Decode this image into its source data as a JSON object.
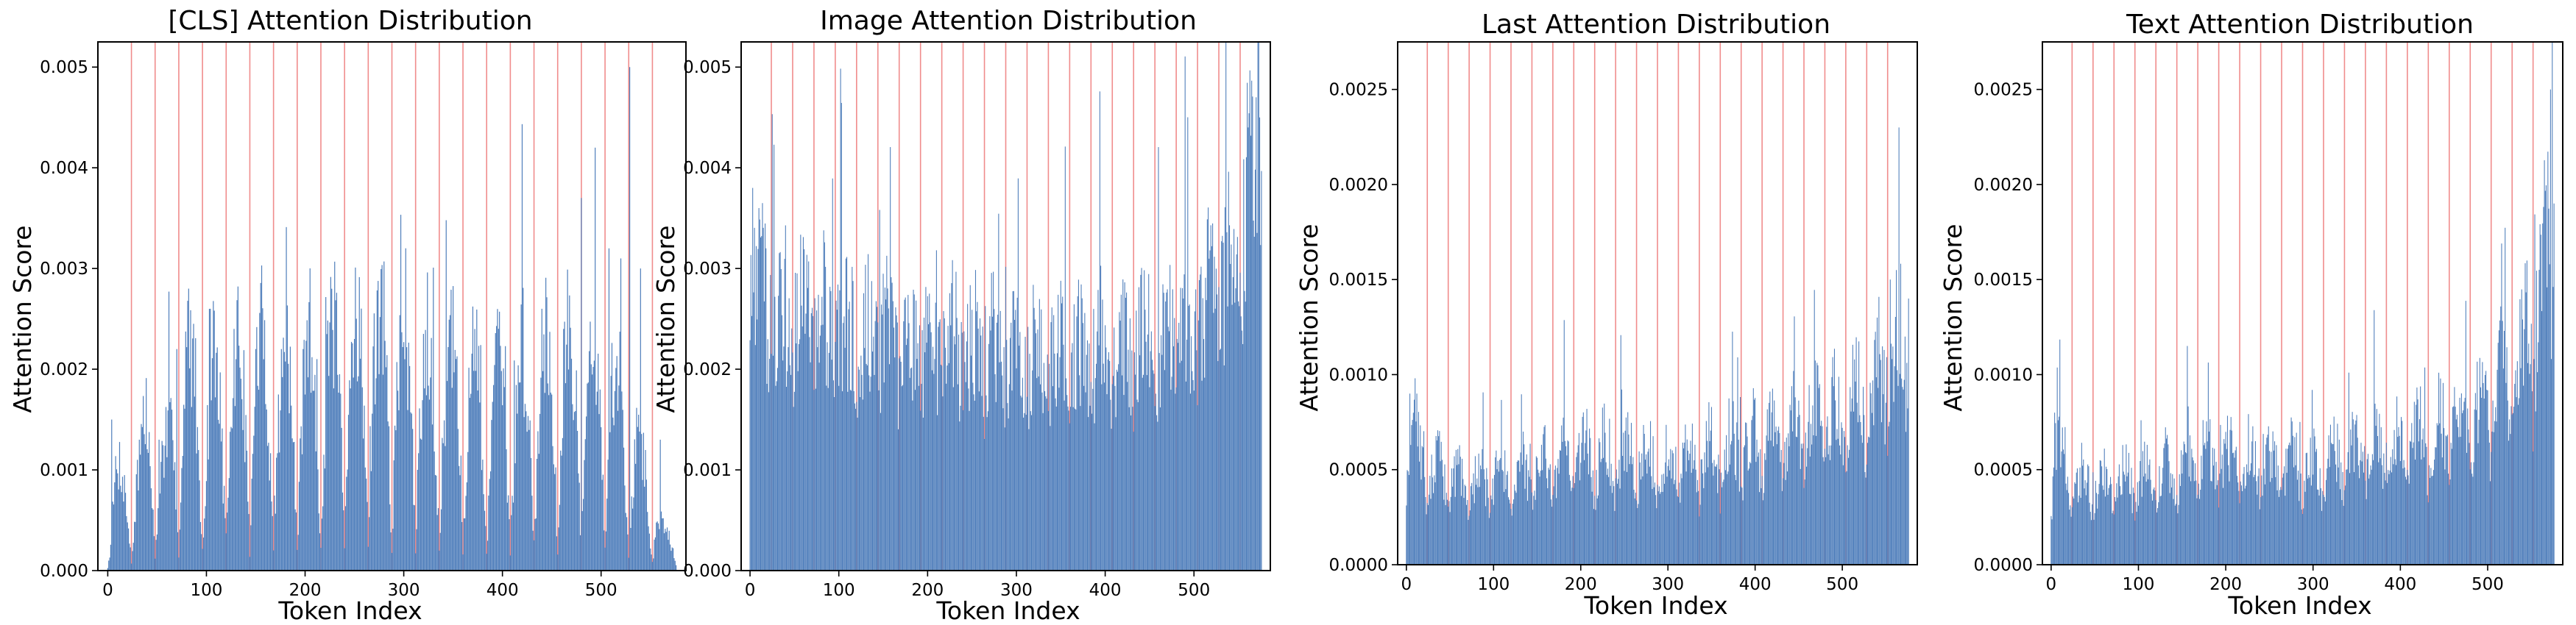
{
  "chart_data": [
    {
      "type": "bar",
      "title": "[CLS] Attention Distribution",
      "xlabel": "Token Index",
      "ylabel": "Attention Score",
      "xlim": [
        -10,
        586
      ],
      "ylim": [
        0,
        0.00525
      ],
      "xticks": [
        0,
        100,
        200,
        300,
        400,
        500
      ],
      "yticks": [
        0.0,
        0.001,
        0.002,
        0.003,
        0.004,
        0.005
      ],
      "ytick_labels": [
        "0.000",
        "0.001",
        "0.002",
        "0.003",
        "0.004",
        "0.005"
      ],
      "bar_color": "#4f7ebb",
      "separator_color": "#f08c8c",
      "separators": [
        24,
        48,
        72,
        96,
        120,
        144,
        168,
        192,
        216,
        240,
        264,
        288,
        312,
        336,
        360,
        384,
        408,
        432,
        456,
        480,
        504,
        528,
        552
      ],
      "profile": [
        [
          0,
          0.0002
        ],
        [
          8,
          0.0006
        ],
        [
          24,
          0.0005
        ],
        [
          40,
          0.0009
        ],
        [
          60,
          0.0007
        ],
        [
          80,
          0.0013
        ],
        [
          100,
          0.0011
        ],
        [
          120,
          0.0012
        ],
        [
          150,
          0.0013
        ],
        [
          180,
          0.0012
        ],
        [
          210,
          0.0013
        ],
        [
          240,
          0.0014
        ],
        [
          270,
          0.0015
        ],
        [
          300,
          0.0014
        ],
        [
          330,
          0.0013
        ],
        [
          360,
          0.0012
        ],
        [
          390,
          0.0011
        ],
        [
          420,
          0.0012
        ],
        [
          450,
          0.0013
        ],
        [
          480,
          0.0013
        ],
        [
          510,
          0.0012
        ],
        [
          530,
          0.0009
        ],
        [
          560,
          0.0003
        ],
        [
          576,
          0.0002
        ]
      ],
      "peaks": [
        [
          4,
          0.0015
        ],
        [
          30,
          0.0011
        ],
        [
          52,
          0.0013
        ],
        [
          70,
          0.0022
        ],
        [
          82,
          0.0028
        ],
        [
          104,
          0.0026
        ],
        [
          128,
          0.0024
        ],
        [
          150,
          0.0022
        ],
        [
          176,
          0.0022
        ],
        [
          198,
          0.0022
        ],
        [
          212,
          0.0021
        ],
        [
          228,
          0.0022
        ],
        [
          250,
          0.0023
        ],
        [
          270,
          0.0024
        ],
        [
          296,
          0.0024
        ],
        [
          322,
          0.0022
        ],
        [
          346,
          0.002
        ],
        [
          372,
          0.0023
        ],
        [
          398,
          0.0019
        ],
        [
          420,
          0.002
        ],
        [
          440,
          0.0026
        ],
        [
          462,
          0.0024
        ],
        [
          480,
          0.0037
        ],
        [
          494,
          0.0042
        ],
        [
          508,
          0.0032
        ],
        [
          520,
          0.0031
        ],
        [
          529,
          0.005
        ],
        [
          540,
          0.003
        ],
        [
          560,
          0.0013
        ]
      ],
      "modulation": {
        "period": 24,
        "depth": 0.85
      }
    },
    {
      "type": "bar",
      "title": "Image Attention Distribution",
      "xlabel": "Token Index",
      "ylabel": "Attention Score",
      "xlim": [
        -10,
        586
      ],
      "ylim": [
        0,
        0.00525
      ],
      "xticks": [
        0,
        100,
        200,
        300,
        400,
        500
      ],
      "yticks": [
        0.0,
        0.001,
        0.002,
        0.003,
        0.004,
        0.005
      ],
      "ytick_labels": [
        "0.000",
        "0.001",
        "0.002",
        "0.003",
        "0.004",
        "0.005"
      ],
      "bar_color": "#4f7ebb",
      "separator_color": "#f08c8c",
      "separators": [
        24,
        48,
        72,
        96,
        120,
        144,
        168,
        192,
        216,
        240,
        264,
        288,
        312,
        336,
        360,
        384,
        408,
        432,
        456,
        480,
        504,
        528,
        552
      ],
      "profile": [
        [
          0,
          0.003
        ],
        [
          8,
          0.0027
        ],
        [
          24,
          0.0025
        ],
        [
          50,
          0.0024
        ],
        [
          100,
          0.0023
        ],
        [
          150,
          0.0022
        ],
        [
          200,
          0.00215
        ],
        [
          250,
          0.0021
        ],
        [
          300,
          0.0021
        ],
        [
          350,
          0.00205
        ],
        [
          400,
          0.0021
        ],
        [
          450,
          0.00215
        ],
        [
          480,
          0.0022
        ],
        [
          500,
          0.0023
        ],
        [
          520,
          0.0025
        ],
        [
          540,
          0.0028
        ],
        [
          555,
          0.0032
        ],
        [
          565,
          0.0038
        ],
        [
          576,
          0.0044
        ]
      ],
      "peaks": [
        [
          3,
          0.0038
        ],
        [
          10,
          0.0036
        ],
        [
          18,
          0.0032
        ],
        [
          540,
          0.0031
        ],
        [
          560,
          0.004
        ],
        [
          570,
          0.0047
        ],
        [
          574,
          0.0045
        ]
      ],
      "modulation": {
        "period": 24,
        "depth": 0.12
      }
    },
    {
      "type": "bar",
      "title": "Last Attention Distribution",
      "xlabel": "Token Index",
      "ylabel": "Attention Score",
      "xlim": [
        -10,
        586
      ],
      "ylim": [
        0,
        0.00275
      ],
      "xticks": [
        0,
        100,
        200,
        300,
        400,
        500
      ],
      "yticks": [
        0.0,
        0.0005,
        0.001,
        0.0015,
        0.002,
        0.0025
      ],
      "ytick_labels": [
        "0.0000",
        "0.0005",
        "0.0010",
        "0.0015",
        "0.0020",
        "0.0025"
      ],
      "bar_color": "#4f7ebb",
      "separator_color": "#f08c8c",
      "separators": [
        24,
        48,
        72,
        96,
        120,
        144,
        168,
        192,
        216,
        240,
        264,
        288,
        312,
        336,
        360,
        384,
        408,
        432,
        456,
        480,
        504,
        528,
        552
      ],
      "profile": [
        [
          0,
          0.0005
        ],
        [
          10,
          0.0006
        ],
        [
          24,
          0.00045
        ],
        [
          50,
          0.0004
        ],
        [
          100,
          0.0004
        ],
        [
          150,
          0.00045
        ],
        [
          200,
          0.0005
        ],
        [
          250,
          0.00052
        ],
        [
          300,
          0.00048
        ],
        [
          350,
          0.00052
        ],
        [
          400,
          0.00058
        ],
        [
          450,
          0.00063
        ],
        [
          480,
          0.00068
        ],
        [
          500,
          0.00072
        ],
        [
          520,
          0.00078
        ],
        [
          540,
          0.00085
        ],
        [
          560,
          0.00095
        ],
        [
          576,
          0.0011
        ]
      ],
      "peaks": [
        [
          4,
          0.0009
        ],
        [
          12,
          0.0009
        ],
        [
          540,
          0.0013
        ],
        [
          555,
          0.0015
        ],
        [
          565,
          0.0023
        ],
        [
          572,
          0.0012
        ],
        [
          576,
          0.0014
        ]
      ],
      "modulation": {
        "period": 24,
        "depth": 0.3
      }
    },
    {
      "type": "bar",
      "title": "Text Attention Distribution",
      "xlabel": "Token Index",
      "ylabel": "Attention Score",
      "xlim": [
        -10,
        586
      ],
      "ylim": [
        0,
        0.00275
      ],
      "xticks": [
        0,
        100,
        200,
        300,
        400,
        500
      ],
      "yticks": [
        0.0,
        0.0005,
        0.001,
        0.0015,
        0.002,
        0.0025
      ],
      "ytick_labels": [
        "0.0000",
        "0.0005",
        "0.0010",
        "0.0015",
        "0.0020",
        "0.0025"
      ],
      "bar_color": "#4f7ebb",
      "separator_color": "#f08c8c",
      "separators": [
        24,
        48,
        72,
        96,
        120,
        144,
        168,
        192,
        216,
        240,
        264,
        288,
        312,
        336,
        360,
        384,
        408,
        432,
        456,
        480,
        504,
        528,
        552
      ],
      "profile": [
        [
          0,
          0.0004
        ],
        [
          10,
          0.0005
        ],
        [
          24,
          0.0004
        ],
        [
          50,
          0.00038
        ],
        [
          100,
          0.0004
        ],
        [
          150,
          0.00045
        ],
        [
          200,
          0.00048
        ],
        [
          250,
          0.00048
        ],
        [
          300,
          0.00045
        ],
        [
          350,
          0.0005
        ],
        [
          400,
          0.00055
        ],
        [
          450,
          0.00062
        ],
        [
          480,
          0.0007
        ],
        [
          500,
          0.00075
        ],
        [
          520,
          0.00085
        ],
        [
          540,
          0.001
        ],
        [
          560,
          0.0013
        ],
        [
          576,
          0.0017
        ]
      ],
      "peaks": [
        [
          4,
          0.0008
        ],
        [
          10,
          0.00095
        ],
        [
          520,
          0.0011
        ],
        [
          545,
          0.0016
        ],
        [
          565,
          0.0018
        ],
        [
          572,
          0.0025
        ],
        [
          576,
          0.0019
        ]
      ],
      "modulation": {
        "period": 24,
        "depth": 0.3
      }
    }
  ]
}
